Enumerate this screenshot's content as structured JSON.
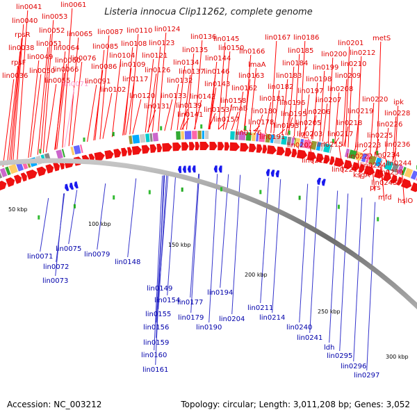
{
  "title": "Listeria innocua Clip11262, complete genome",
  "footer": {
    "accession": "Accession: NC_003212",
    "summary": "Topology: circular; Length: 3,011,208 bp; Genes: 3,052"
  },
  "colors": {
    "top_label": "#e00000",
    "top_leader": "#ff0000",
    "bottom_label": "#0000aa",
    "bottom_leader": "#3333cc",
    "forward_arrow": "#ee1111",
    "reverse_arrow": "#1a1aee",
    "backbone": "#8a8a8a",
    "highlight_label": "#ff99cc"
  },
  "top_labels": [
    "lin0041",
    "lin0040",
    "rpsR",
    "lin0038",
    "rpsF",
    "lin0036",
    "lin0053",
    "lin0052",
    "lin0051",
    "lin0049",
    "lin0050",
    "lin0055",
    "lin0061",
    "lin0065",
    "lin0064",
    "lin0060",
    "lin0066",
    "lin0071",
    "lin0087",
    "lin0085",
    "lin0076",
    "lin0086",
    "lin0091",
    "lin0102",
    "lin0110",
    "lin0108",
    "lin0104",
    "lin0109",
    "lin0117",
    "lin0120",
    "lin0124",
    "lin0123",
    "lin0121",
    "lin0126",
    "lin0132",
    "lin0131",
    "lin0136",
    "lin0135",
    "lin0134",
    "lin0137",
    "lin0133",
    "lin0139",
    "lin0145",
    "lin0150",
    "lin0144",
    "lin0146",
    "lin0143",
    "lin0142",
    "lin0141",
    "lin0167",
    "lin0166",
    "lmaA",
    "lin0163",
    "lin0162",
    "lin0158",
    "lmaB",
    "lin0153",
    "lin0157",
    "lin0186",
    "lin0185",
    "lin0184",
    "lin0183",
    "lin0182",
    "lin0181",
    "lin0180",
    "lin0178",
    "lin0176",
    "lin0201",
    "lin0200",
    "lin0199",
    "lin0198",
    "lin0197",
    "lin0196",
    "lin0195",
    "lin0193",
    "lin0191",
    "lin0212",
    "lin0210",
    "lin0209",
    "lin0208",
    "lin0207",
    "lin0206",
    "lin0205",
    "lin0203",
    "lin0202",
    "metS",
    "lin0220",
    "lin0219",
    "lin0218",
    "lin0217",
    "lin0215",
    "lin0213",
    "ipk",
    "lin0228",
    "lin0226",
    "lin0225",
    "lin0223",
    "lin0222",
    "lin0221",
    "lin0224",
    "ksgA",
    "lin0236",
    "lin0234",
    "lin0244",
    "lin0239",
    "lin0245",
    "prs",
    "mfd",
    "hslO"
  ],
  "bottom_labels": [
    "lin0071",
    "lin0075",
    "lin0072",
    "lin0073",
    "lin0079",
    "lin0148",
    "lin0149",
    "lin0154",
    "lin0155",
    "lin0156",
    "lin0159",
    "lin0160",
    "lin0161",
    "lin0177",
    "lin0179",
    "lin0190",
    "lin0194",
    "lin0204",
    "lin0211",
    "lin0214",
    "lin0240",
    "lin0241",
    "ldh",
    "lin0295",
    "lin0296",
    "lin0297"
  ],
  "scale_ticks": [
    "50 kbp",
    "100 kbp",
    "150 kbp",
    "200 kbp",
    "250 kbp",
    "300 kbp"
  ]
}
